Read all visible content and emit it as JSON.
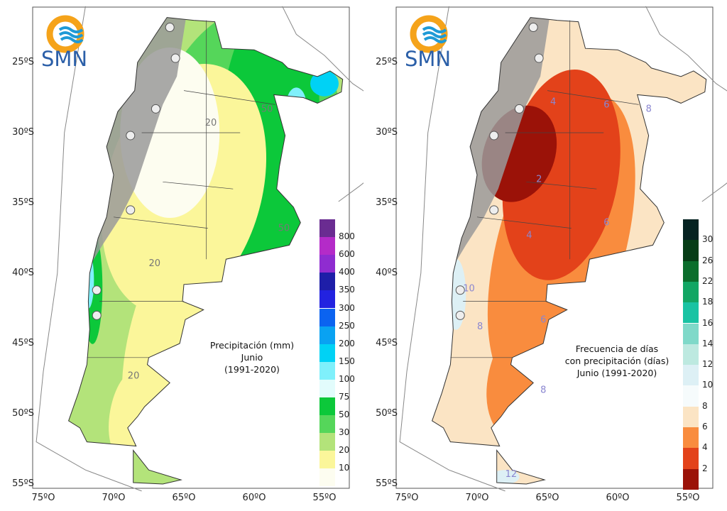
{
  "logo_text": "SMN",
  "lat_labels": [
    "25ºS",
    "30ºS",
    "35ºS",
    "40ºS",
    "45ºS",
    "50ºS",
    "55ºS"
  ],
  "lon_labels": [
    "75ºO",
    "70ºO",
    "65ºO",
    "60ºO",
    "55ºO"
  ],
  "left_map": {
    "title": [
      "Precipitación (mm)",
      "Junio",
      "(1991-2020)"
    ],
    "legend_labels": [
      "800",
      "600",
      "400",
      "350",
      "300",
      "250",
      "200",
      "150",
      "100",
      "75",
      "50",
      "30",
      "20",
      "10"
    ],
    "legend_colors": [
      "#6a2c91",
      "#b42bc8",
      "#8f2cd0",
      "#1e1ea8",
      "#2222e0",
      "#0b63f0",
      "#09a2f2",
      "#00d2f5",
      "#7ff0fb",
      "#e2fcfc",
      "#0cc83a",
      "#55d65a",
      "#b3e37a",
      "#fbf69a",
      "#fdfdf0"
    ],
    "contour_labels": [
      "20",
      "50",
      "20",
      "20",
      "50"
    ]
  },
  "right_map": {
    "title": [
      "Frecuencia de días",
      "con precipitación (días)",
      "Junio (1991-2020)"
    ],
    "legend_labels": [
      "30",
      "26",
      "22",
      "18",
      "16",
      "14",
      "12",
      "10",
      "8",
      "6",
      "4",
      "2"
    ],
    "legend_colors": [
      "#062322",
      "#063d16",
      "#0b6e2c",
      "#12a664",
      "#19c3a3",
      "#7fd9c9",
      "#bde9e0",
      "#ddf0f5",
      "#f6fbfc",
      "#fbe4c4",
      "#f98c3e",
      "#e3421a",
      "#9b1208"
    ],
    "contour_labels": [
      "4",
      "6",
      "8",
      "2",
      "4",
      "6",
      "10",
      "8",
      "6",
      "8",
      "12"
    ]
  }
}
